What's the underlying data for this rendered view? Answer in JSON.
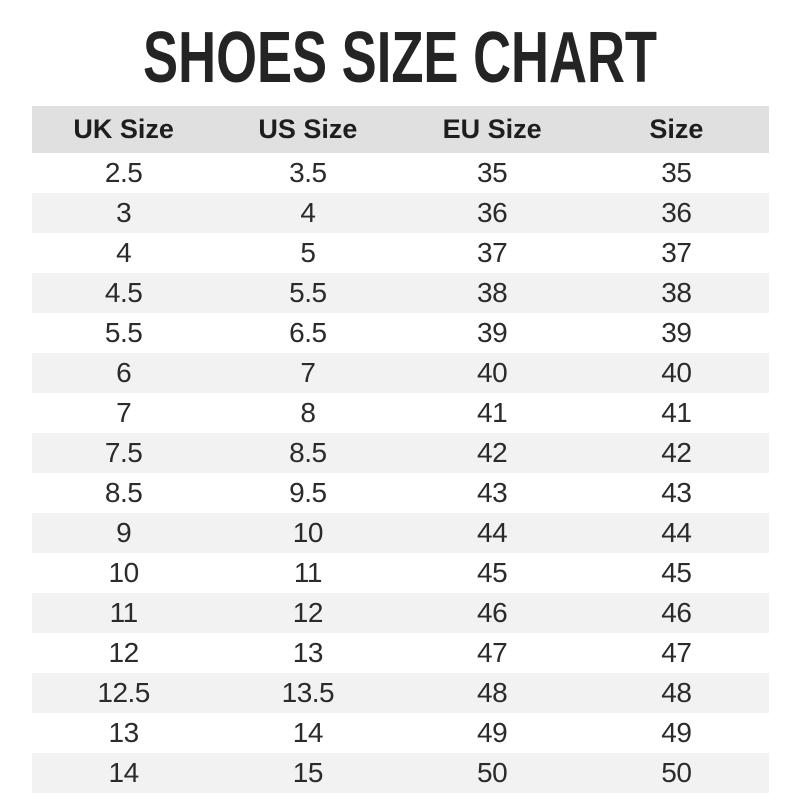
{
  "title": "SHOES SIZE CHART",
  "chart_data": {
    "type": "table",
    "columns": [
      "UK Size",
      "US Size",
      "EU Size",
      "Size"
    ],
    "rows": [
      [
        "2.5",
        "3.5",
        "35",
        "35"
      ],
      [
        "3",
        "4",
        "36",
        "36"
      ],
      [
        "4",
        "5",
        "37",
        "37"
      ],
      [
        "4.5",
        "5.5",
        "38",
        "38"
      ],
      [
        "5.5",
        "6.5",
        "39",
        "39"
      ],
      [
        "6",
        "7",
        "40",
        "40"
      ],
      [
        "7",
        "8",
        "41",
        "41"
      ],
      [
        "7.5",
        "8.5",
        "42",
        "42"
      ],
      [
        "8.5",
        "9.5",
        "43",
        "43"
      ],
      [
        "9",
        "10",
        "44",
        "44"
      ],
      [
        "10",
        "11",
        "45",
        "45"
      ],
      [
        "11",
        "12",
        "46",
        "46"
      ],
      [
        "12",
        "13",
        "47",
        "47"
      ],
      [
        "12.5",
        "13.5",
        "48",
        "48"
      ],
      [
        "13",
        "14",
        "49",
        "49"
      ],
      [
        "14",
        "15",
        "50",
        "50"
      ]
    ],
    "layout": {
      "striped_rows": true,
      "stripe_pattern": "even rows shaded",
      "alignment": "center"
    }
  },
  "colors": {
    "page_bg": "#ffffff",
    "title_color": "#242424",
    "header_bg": "#e0e0e0",
    "header_text": "#1e1e1e",
    "stripe_bg": "#f2f2f2",
    "cell_text": "#2b2b2b"
  }
}
